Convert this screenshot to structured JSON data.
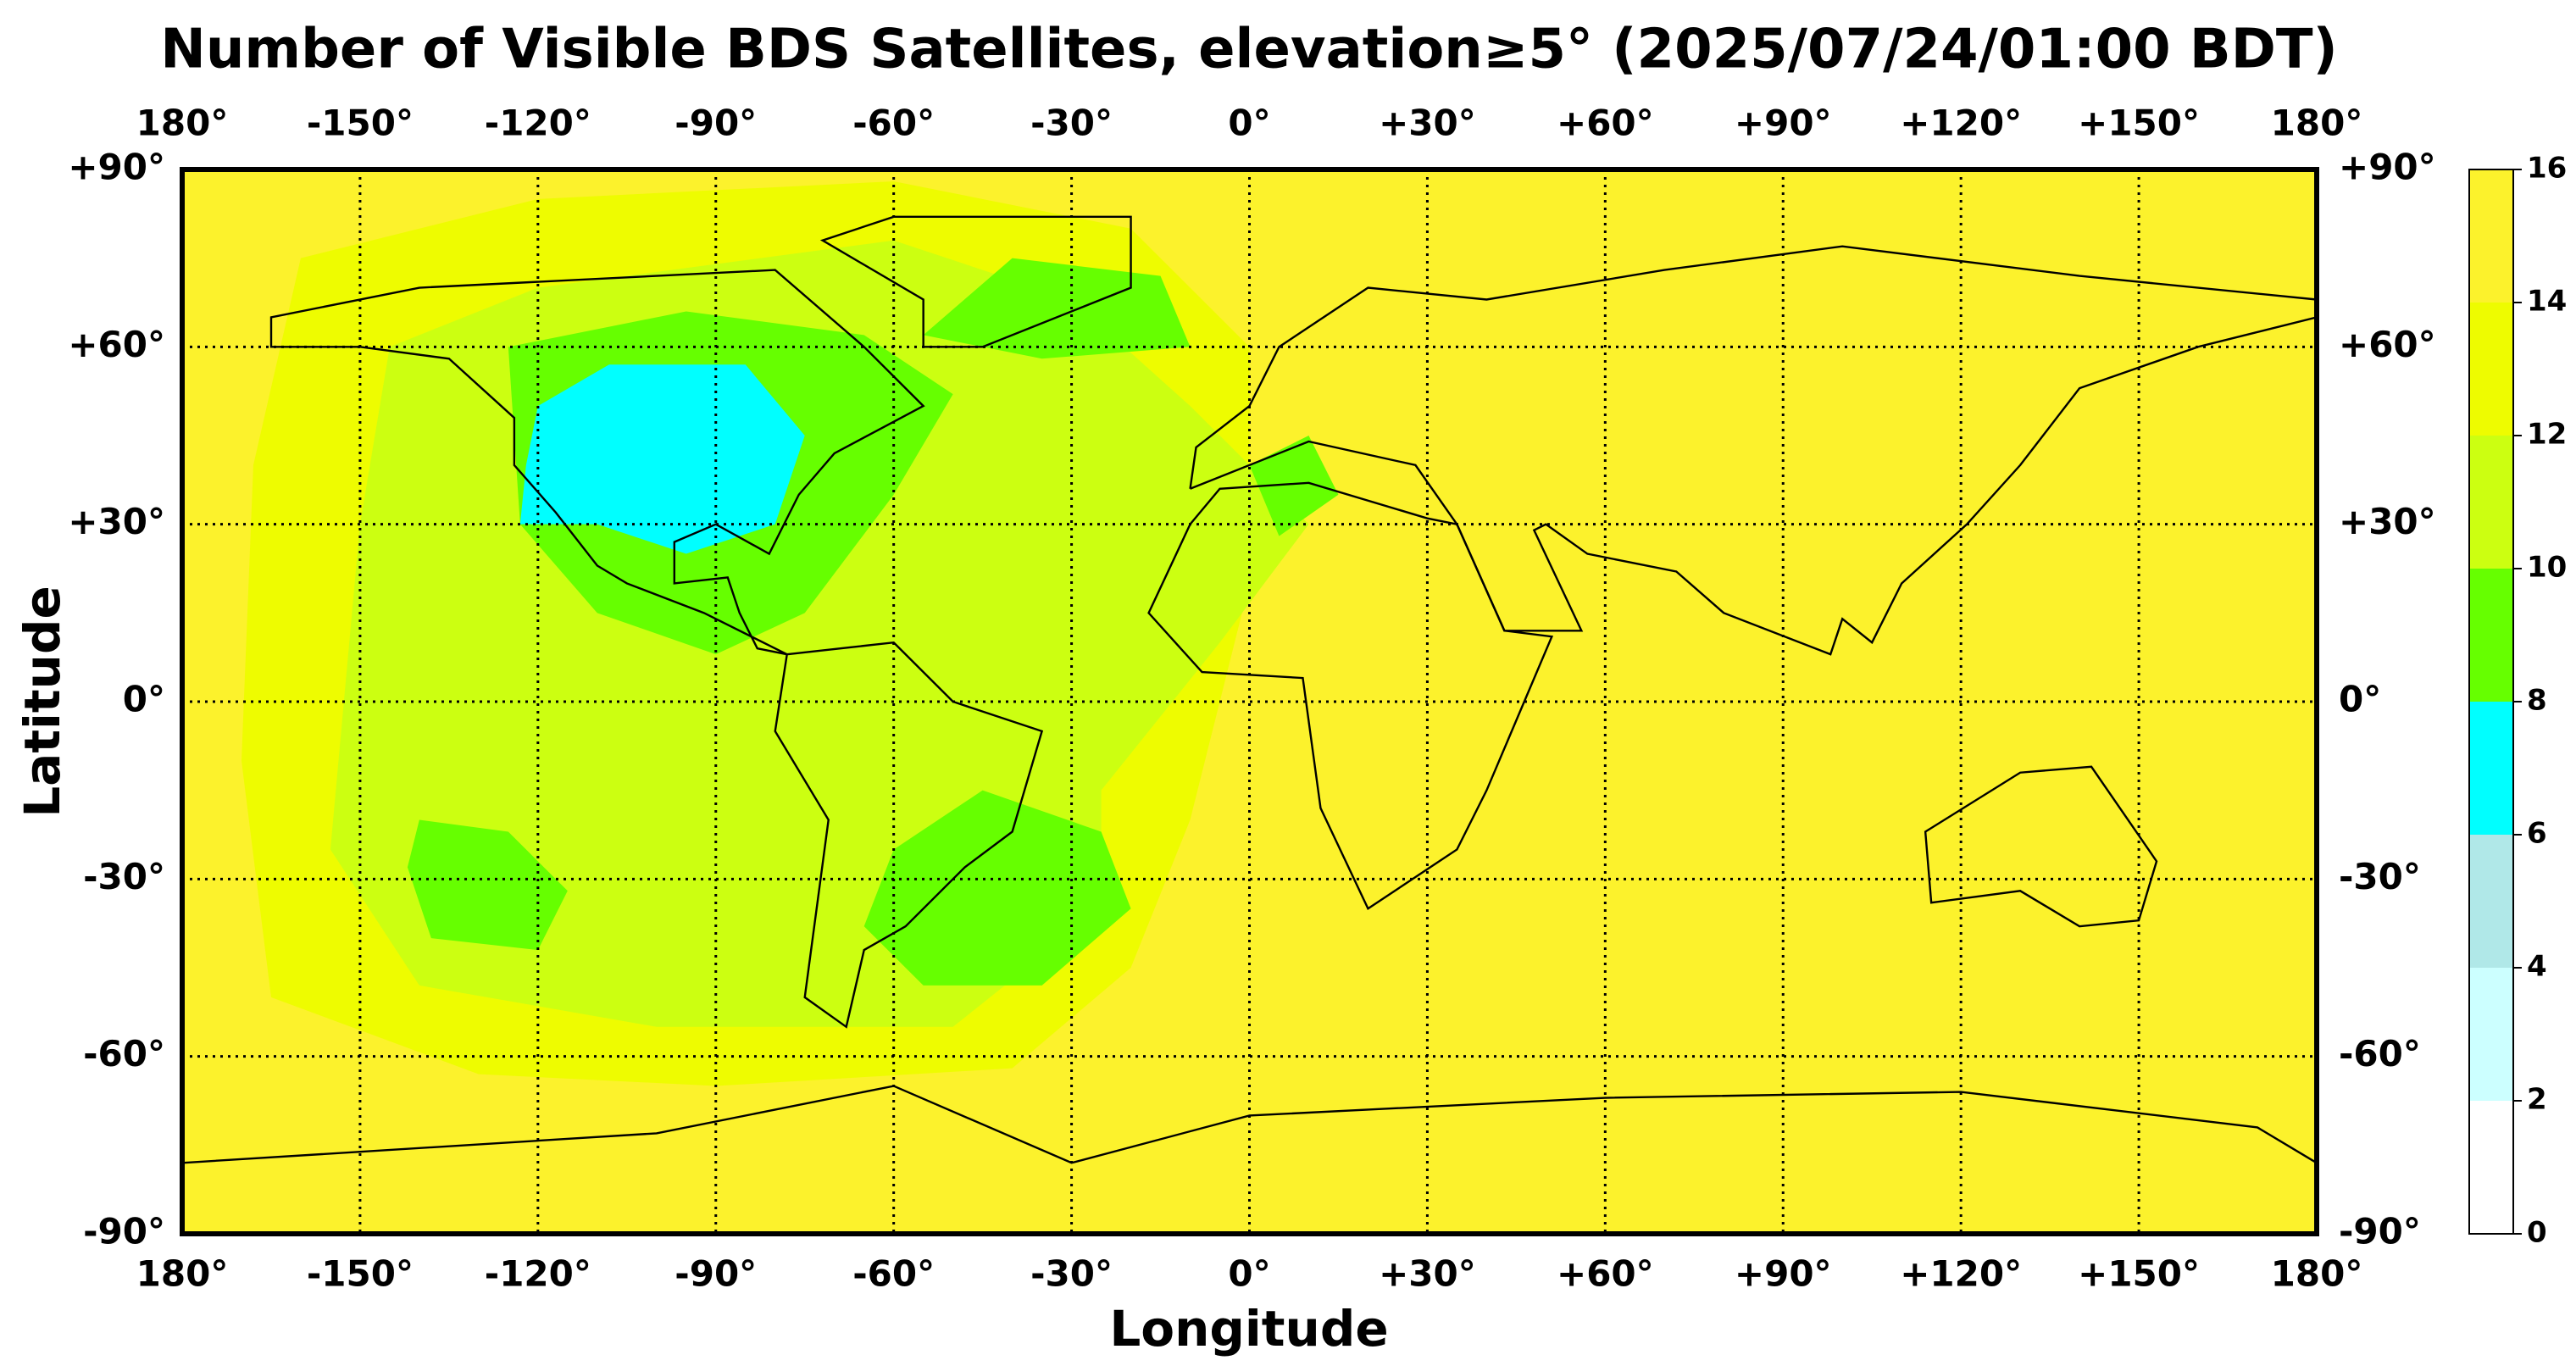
{
  "chart_data": {
    "type": "map",
    "title": "Number of Visible BDS Satellites, elevation≥5° (2025/07/24/01:00 BDT)",
    "xlabel": "Longitude",
    "ylabel": "Latitude",
    "xlim": [
      -180,
      180
    ],
    "ylim": [
      -90,
      90
    ],
    "xticks": [
      {
        "value": -180,
        "label": "180°"
      },
      {
        "value": -150,
        "label": "-150°"
      },
      {
        "value": -120,
        "label": "-120°"
      },
      {
        "value": -90,
        "label": "-90°"
      },
      {
        "value": -60,
        "label": "-60°"
      },
      {
        "value": -30,
        "label": "-30°"
      },
      {
        "value": 0,
        "label": "0°"
      },
      {
        "value": 30,
        "label": "+30°"
      },
      {
        "value": 60,
        "label": "+60°"
      },
      {
        "value": 90,
        "label": "+90°"
      },
      {
        "value": 120,
        "label": "+120°"
      },
      {
        "value": 150,
        "label": "+150°"
      },
      {
        "value": 180,
        "label": "180°"
      }
    ],
    "yticks": [
      {
        "value": 90,
        "label": "+90°"
      },
      {
        "value": 60,
        "label": "+60°"
      },
      {
        "value": 30,
        "label": "+30°"
      },
      {
        "value": 0,
        "label": "0°"
      },
      {
        "value": -30,
        "label": "-30°"
      },
      {
        "value": -60,
        "label": "-60°"
      },
      {
        "value": -90,
        "label": "-90°"
      }
    ],
    "grid": true,
    "colorbar": {
      "ticks": [
        0,
        2,
        4,
        6,
        8,
        10,
        12,
        14,
        16
      ],
      "colors": [
        "#ffffff",
        "#ccffff",
        "#b0e8e8",
        "#00ffff",
        "#66ff00",
        "#ccff11",
        "#eefc00",
        "#fcf22c"
      ]
    },
    "regions": [
      {
        "value": 15,
        "polygon": [
          [
            -180,
            90
          ],
          [
            180,
            90
          ],
          [
            180,
            -90
          ],
          [
            -180,
            -90
          ]
        ]
      },
      {
        "value": 13,
        "polygon": [
          [
            -160,
            75
          ],
          [
            -120,
            85
          ],
          [
            -60,
            88
          ],
          [
            -20,
            80
          ],
          [
            0,
            60
          ],
          [
            0,
            20
          ],
          [
            -10,
            -20
          ],
          [
            -20,
            -45
          ],
          [
            -40,
            -62
          ],
          [
            -90,
            -65
          ],
          [
            -130,
            -63
          ],
          [
            -165,
            -50
          ],
          [
            -170,
            -10
          ],
          [
            -168,
            40
          ]
        ]
      },
      {
        "value": 11,
        "polygon": [
          [
            -145,
            60
          ],
          [
            -120,
            70
          ],
          [
            -60,
            78
          ],
          [
            -30,
            68
          ],
          [
            -10,
            50
          ],
          [
            10,
            30
          ],
          [
            -5,
            10
          ],
          [
            -25,
            -15
          ],
          [
            -25,
            -35
          ],
          [
            -50,
            -55
          ],
          [
            -100,
            -55
          ],
          [
            -140,
            -48
          ],
          [
            -155,
            -25
          ],
          [
            -150,
            30
          ]
        ]
      },
      {
        "value": 9,
        "polygon": [
          [
            -125,
            60
          ],
          [
            -95,
            66
          ],
          [
            -65,
            62
          ],
          [
            -50,
            52
          ],
          [
            -60,
            35
          ],
          [
            -75,
            15
          ],
          [
            -90,
            8
          ],
          [
            -110,
            15
          ],
          [
            -123,
            30
          ]
        ]
      },
      {
        "value": 9,
        "polygon": [
          [
            -60,
            -25
          ],
          [
            -45,
            -15
          ],
          [
            -25,
            -22
          ],
          [
            -20,
            -35
          ],
          [
            -35,
            -48
          ],
          [
            -55,
            -48
          ],
          [
            -65,
            -38
          ]
        ]
      },
      {
        "value": 9,
        "polygon": [
          [
            -55,
            62
          ],
          [
            -40,
            75
          ],
          [
            -15,
            72
          ],
          [
            -10,
            60
          ],
          [
            -35,
            58
          ]
        ]
      },
      {
        "value": 9,
        "polygon": [
          [
            -140,
            -20
          ],
          [
            -125,
            -22
          ],
          [
            -115,
            -32
          ],
          [
            -120,
            -42
          ],
          [
            -138,
            -40
          ],
          [
            -142,
            -28
          ]
        ]
      },
      {
        "value": 9,
        "polygon": [
          [
            0,
            40
          ],
          [
            10,
            45
          ],
          [
            15,
            35
          ],
          [
            5,
            28
          ]
        ]
      },
      {
        "value": 7,
        "polygon": [
          [
            -120,
            50
          ],
          [
            -108,
            57
          ],
          [
            -85,
            57
          ],
          [
            -75,
            45
          ],
          [
            -80,
            30
          ],
          [
            -95,
            25
          ],
          [
            -110,
            30
          ],
          [
            -123,
            30
          ],
          [
            -122,
            40
          ]
        ]
      }
    ]
  }
}
